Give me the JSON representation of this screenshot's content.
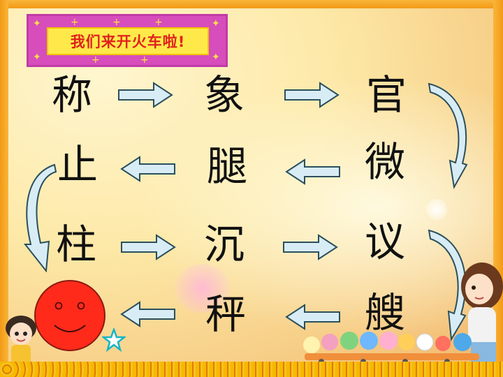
{
  "slide": {
    "title": "我们来开火车啦!",
    "characters": [
      {
        "id": "row1-col1",
        "text": "称"
      },
      {
        "id": "row1-col2",
        "text": "象"
      },
      {
        "id": "row1-col3",
        "text": "官"
      },
      {
        "id": "row2-col1",
        "text": "止"
      },
      {
        "id": "row2-col2",
        "text": "腿"
      },
      {
        "id": "row2-col3",
        "text": "微"
      },
      {
        "id": "row3-col1",
        "text": "柱"
      },
      {
        "id": "row3-col2",
        "text": "沉"
      },
      {
        "id": "row3-col3",
        "text": "议"
      },
      {
        "id": "row4-col2",
        "text": "秤"
      },
      {
        "id": "row4-col3",
        "text": "艘"
      }
    ],
    "colors": {
      "title_text": "#e0221c",
      "title_box": "#ffe94a",
      "banner": "#d64dbb",
      "arrow_fill": "#d8ecf5",
      "arrow_stroke": "#2b4f5c",
      "smiley": "#ff2a1a",
      "frame": "#f5a11d"
    },
    "icons": [
      "arrow-right-icon",
      "arrow-left-icon",
      "curved-arrow-icon",
      "smiley-face-icon",
      "star-icon"
    ]
  }
}
